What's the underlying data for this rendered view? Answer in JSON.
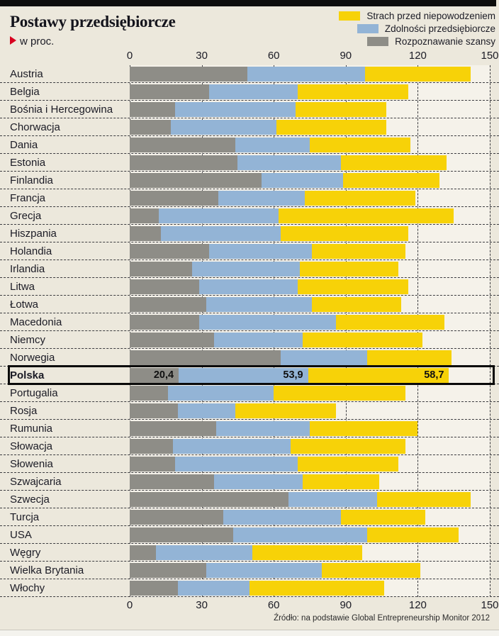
{
  "header": {
    "title": "Postawy przedsiębiorcze",
    "subtitle": "w proc."
  },
  "legend": [
    {
      "label": "Strach przed niepowodzeniem",
      "color": "#f7d208"
    },
    {
      "label": "Zdolności przedsiębiorcze",
      "color": "#93b4d6"
    },
    {
      "label": "Rozpoznawanie szansy",
      "color": "#8e8d87"
    }
  ],
  "source": "Źródło: na podstawie Global Entrepreneurship Monitor 2012",
  "colors": {
    "fear": "#f7d208",
    "abilities": "#93b4d6",
    "opportunity": "#8e8d87",
    "page_background": "#ece8dc",
    "plot_background": "#f5f2ea",
    "highlight_border": "#0a0a0a",
    "accent_red": "#d8001f"
  },
  "chart_data": {
    "type": "bar",
    "orientation": "horizontal",
    "stacked": true,
    "xlim": [
      0,
      150
    ],
    "axis_ticks": [
      0,
      30,
      60,
      90,
      120,
      150
    ],
    "grid": "dashed-vertical",
    "legend_position": "top-right",
    "categories": [
      "Austria",
      "Belgia",
      "Bośnia i Hercegowina",
      "Chorwacja",
      "Dania",
      "Estonia",
      "Finlandia",
      "Francja",
      "Grecja",
      "Hiszpania",
      "Holandia",
      "Irlandia",
      "Litwa",
      "Łotwa",
      "Macedonia",
      "Niemcy",
      "Norwegia",
      "Polska",
      "Portugalia",
      "Rosja",
      "Rumunia",
      "Słowacja",
      "Słowenia",
      "Szwajcaria",
      "Szwecja",
      "Turcja",
      "USA",
      "Węgry",
      "Wielka Brytania",
      "Włochy"
    ],
    "series": [
      {
        "name": "Rozpoznawanie szansy",
        "color": "#8e8d87",
        "values": [
          49,
          33,
          19,
          17,
          44,
          45,
          55,
          37,
          12,
          13,
          33,
          26,
          29,
          32,
          29,
          35,
          63,
          20.4,
          16,
          20,
          36,
          18,
          19,
          35,
          66,
          39,
          43,
          11,
          32,
          20
        ]
      },
      {
        "name": "Zdolności przedsiębiorcze",
        "color": "#93b4d6",
        "values": [
          49,
          37,
          50,
          44,
          31,
          43,
          34,
          36,
          50,
          50,
          43,
          45,
          41,
          44,
          57,
          37,
          36,
          53.9,
          44,
          24,
          39,
          49,
          51,
          37,
          37,
          49,
          56,
          40,
          48,
          30
        ]
      },
      {
        "name": "Strach przed niepowodzeniem",
        "color": "#f7d208",
        "values": [
          44,
          46,
          38,
          46,
          42,
          44,
          40,
          46,
          73,
          53,
          39,
          41,
          46,
          37,
          45,
          50,
          35,
          58.7,
          55,
          42,
          45,
          48,
          42,
          32,
          39,
          35,
          38,
          46,
          41,
          56
        ]
      }
    ],
    "highlight": {
      "category": "Polska",
      "segment_labels": [
        "20,4",
        "53,9",
        "58,7"
      ]
    }
  }
}
